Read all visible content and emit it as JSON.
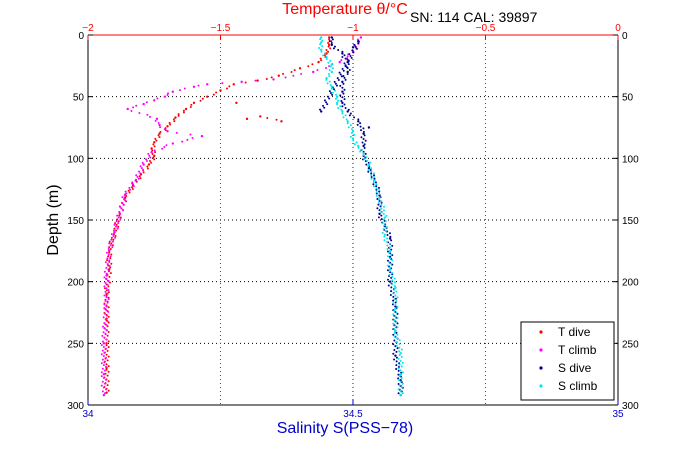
{
  "chart_data": {
    "type": "scatter",
    "top_label": "Temperature θ/°C",
    "header_text": "SN: 114  CAL: 39897",
    "ylabel": "Depth (m)",
    "xlabel_bottom": "Salinity S(PSS−78)",
    "y_axis": {
      "range": [
        0,
        300
      ],
      "reversed": true,
      "ticks": [
        0,
        50,
        100,
        150,
        200,
        250,
        300
      ]
    },
    "x_top": {
      "range": [
        -2,
        0
      ],
      "ticks": [
        -2,
        -1.5,
        -1,
        -0.5,
        0
      ],
      "tick_labels": [
        "−2",
        "−1.5",
        "−1",
        "−0.5",
        "0"
      ],
      "color": "#ff0000"
    },
    "x_bottom": {
      "range": [
        34,
        35
      ],
      "ticks": [
        34,
        34.5,
        35
      ],
      "tick_labels": [
        "34",
        "34.5",
        "35"
      ],
      "color": "#0000cc"
    },
    "grid": true,
    "legend_position": "bottom-right",
    "series": [
      {
        "name": "T dive",
        "axis": "top",
        "color": "#ff0000",
        "points": [
          [
            -1.09,
            2
          ],
          [
            -1.09,
            8
          ],
          [
            -1.1,
            15
          ],
          [
            -1.13,
            22
          ],
          [
            -1.2,
            27
          ],
          [
            -1.28,
            33
          ],
          [
            -1.36,
            37
          ],
          [
            -1.45,
            40
          ],
          [
            -1.5,
            45
          ],
          [
            -1.55,
            50
          ],
          [
            -1.6,
            55
          ],
          [
            -1.63,
            60
          ],
          [
            -1.67,
            67
          ],
          [
            -1.7,
            74
          ],
          [
            -1.73,
            80
          ],
          [
            -1.75,
            87
          ],
          [
            -1.76,
            92
          ],
          [
            -1.75,
            98
          ],
          [
            -1.77,
            105
          ],
          [
            -1.8,
            113
          ],
          [
            -1.83,
            122
          ],
          [
            -1.86,
            132
          ],
          [
            -1.88,
            145
          ],
          [
            -1.9,
            160
          ],
          [
            -1.92,
            175
          ],
          [
            -1.92,
            190
          ],
          [
            -1.93,
            210
          ],
          [
            -1.93,
            230
          ],
          [
            -1.93,
            250
          ],
          [
            -1.93,
            270
          ],
          [
            -1.93,
            290
          ],
          [
            -1.4,
            68
          ],
          [
            -1.35,
            66
          ],
          [
            -1.27,
            70
          ],
          [
            -1.44,
            55
          ]
        ]
      },
      {
        "name": "T climb",
        "axis": "top",
        "color": "#ff00ff",
        "points": [
          [
            -0.97,
            2
          ],
          [
            -0.98,
            7
          ],
          [
            -1.0,
            14
          ],
          [
            -1.05,
            22
          ],
          [
            -1.15,
            30
          ],
          [
            -1.3,
            36
          ],
          [
            -1.42,
            38
          ],
          [
            -1.55,
            40
          ],
          [
            -1.6,
            42
          ],
          [
            -1.68,
            46
          ],
          [
            -1.71,
            50
          ],
          [
            -1.75,
            53
          ],
          [
            -1.79,
            56
          ],
          [
            -1.85,
            60
          ],
          [
            -1.74,
            68
          ],
          [
            -1.73,
            73
          ],
          [
            -1.7,
            78
          ],
          [
            -1.57,
            82
          ],
          [
            -1.68,
            88
          ],
          [
            -1.76,
            95
          ],
          [
            -1.79,
            105
          ],
          [
            -1.82,
            118
          ],
          [
            -1.86,
            130
          ],
          [
            -1.88,
            145
          ],
          [
            -1.9,
            160
          ],
          [
            -1.92,
            175
          ],
          [
            -1.93,
            195
          ],
          [
            -1.93,
            220
          ],
          [
            -1.94,
            250
          ],
          [
            -1.94,
            275
          ],
          [
            -1.94,
            292
          ]
        ]
      },
      {
        "name": "S dive",
        "axis": "bottom",
        "color": "#00008b",
        "points": [
          [
            34.46,
            2
          ],
          [
            34.46,
            8
          ],
          [
            34.48,
            15
          ],
          [
            34.49,
            22
          ],
          [
            34.49,
            30
          ],
          [
            34.48,
            38
          ],
          [
            34.48,
            46
          ],
          [
            34.48,
            55
          ],
          [
            34.49,
            62
          ],
          [
            34.51,
            70
          ],
          [
            34.52,
            80
          ],
          [
            34.52,
            90
          ],
          [
            34.52,
            98
          ],
          [
            34.53,
            108
          ],
          [
            34.54,
            118
          ],
          [
            34.55,
            130
          ],
          [
            34.55,
            145
          ],
          [
            34.56,
            155
          ],
          [
            34.57,
            165
          ],
          [
            34.57,
            180
          ],
          [
            34.57,
            200
          ],
          [
            34.58,
            220
          ],
          [
            34.58,
            240
          ],
          [
            34.58,
            260
          ],
          [
            34.59,
            280
          ],
          [
            34.59,
            292
          ],
          [
            34.53,
            75
          ],
          [
            34.5,
            10
          ],
          [
            34.51,
            5
          ],
          [
            34.44,
            62
          ]
        ]
      },
      {
        "name": "S climb",
        "axis": "bottom",
        "color": "#00e5ee",
        "points": [
          [
            34.44,
            2
          ],
          [
            34.44,
            6
          ],
          [
            34.44,
            12
          ],
          [
            34.45,
            18
          ],
          [
            34.46,
            24
          ],
          [
            34.46,
            30
          ],
          [
            34.45,
            35
          ],
          [
            34.46,
            42
          ],
          [
            34.47,
            50
          ],
          [
            34.47,
            55
          ],
          [
            34.48,
            62
          ],
          [
            34.49,
            70
          ],
          [
            34.5,
            78
          ],
          [
            34.5,
            84
          ],
          [
            34.51,
            90
          ],
          [
            34.52,
            96
          ],
          [
            34.53,
            105
          ],
          [
            34.54,
            118
          ],
          [
            34.55,
            132
          ],
          [
            34.56,
            148
          ],
          [
            34.56,
            162
          ],
          [
            34.57,
            175
          ],
          [
            34.57,
            190
          ],
          [
            34.58,
            205
          ],
          [
            34.58,
            222
          ],
          [
            34.58,
            240
          ],
          [
            34.59,
            258
          ],
          [
            34.59,
            275
          ],
          [
            34.59,
            292
          ]
        ]
      }
    ]
  }
}
